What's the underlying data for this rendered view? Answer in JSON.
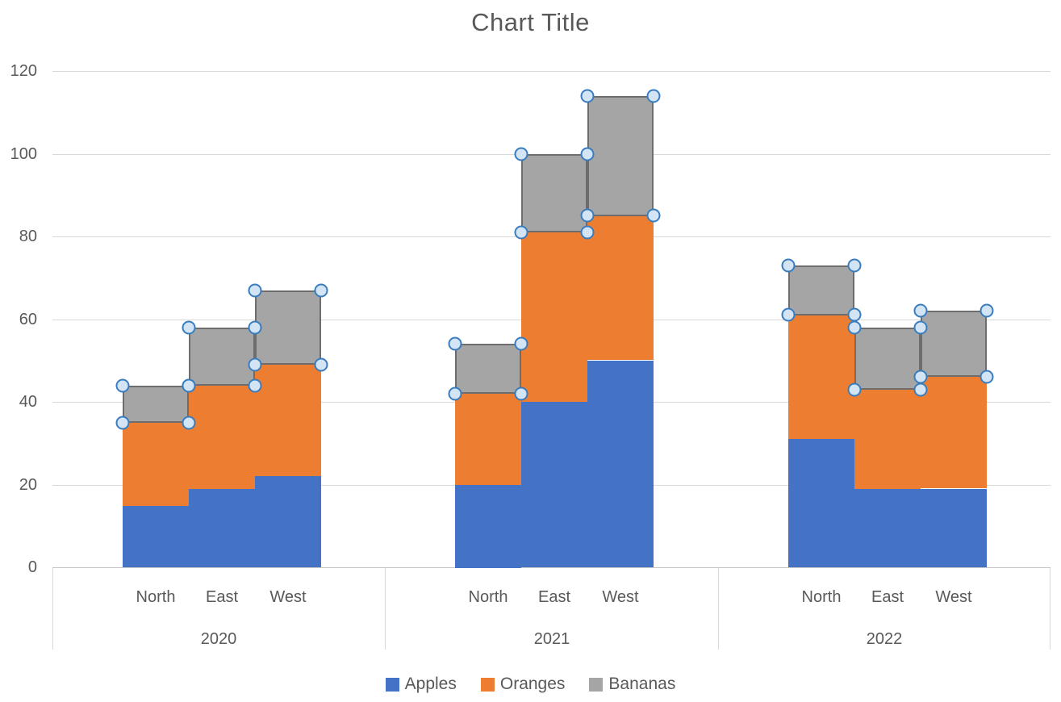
{
  "title": "Chart Title",
  "chart_data": {
    "type": "bar",
    "stacked": true,
    "title": "Chart Title",
    "group_labels": [
      "2020",
      "2021",
      "2022"
    ],
    "categories": [
      "North",
      "East",
      "West"
    ],
    "series": [
      {
        "name": "Apples",
        "color": "#4472C4",
        "values": [
          [
            15,
            19,
            22
          ],
          [
            20,
            40,
            50
          ],
          [
            31,
            19,
            19
          ]
        ]
      },
      {
        "name": "Oranges",
        "color": "#ED7D31",
        "values": [
          [
            20,
            25,
            27
          ],
          [
            22,
            41,
            35
          ],
          [
            30,
            24,
            27
          ]
        ]
      },
      {
        "name": "Bananas",
        "color": "#A5A5A5",
        "values": [
          [
            9,
            14,
            18
          ],
          [
            12,
            19,
            29
          ],
          [
            12,
            15,
            16
          ]
        ],
        "selected": true
      }
    ],
    "stack_totals": [
      [
        44,
        58,
        67
      ],
      [
        54,
        100,
        114
      ],
      [
        73,
        58,
        62
      ]
    ],
    "y_axis": {
      "min": 0,
      "max": 120,
      "step": 20,
      "ticks": [
        0,
        20,
        40,
        60,
        80,
        100,
        120
      ]
    },
    "gridlines": true,
    "legend_position": "bottom",
    "legend_labels": [
      "Apples",
      "Oranges",
      "Bananas"
    ],
    "selection": {
      "selected_series": "Bananas",
      "handle_fill": "#D3E5F5",
      "handle_stroke": "#3A7DBF",
      "selected_border": "#6D6D6D"
    },
    "colors": {
      "gridline": "#D9D9D9",
      "axis_line": "#C6C6C6",
      "text": "#595959"
    }
  }
}
